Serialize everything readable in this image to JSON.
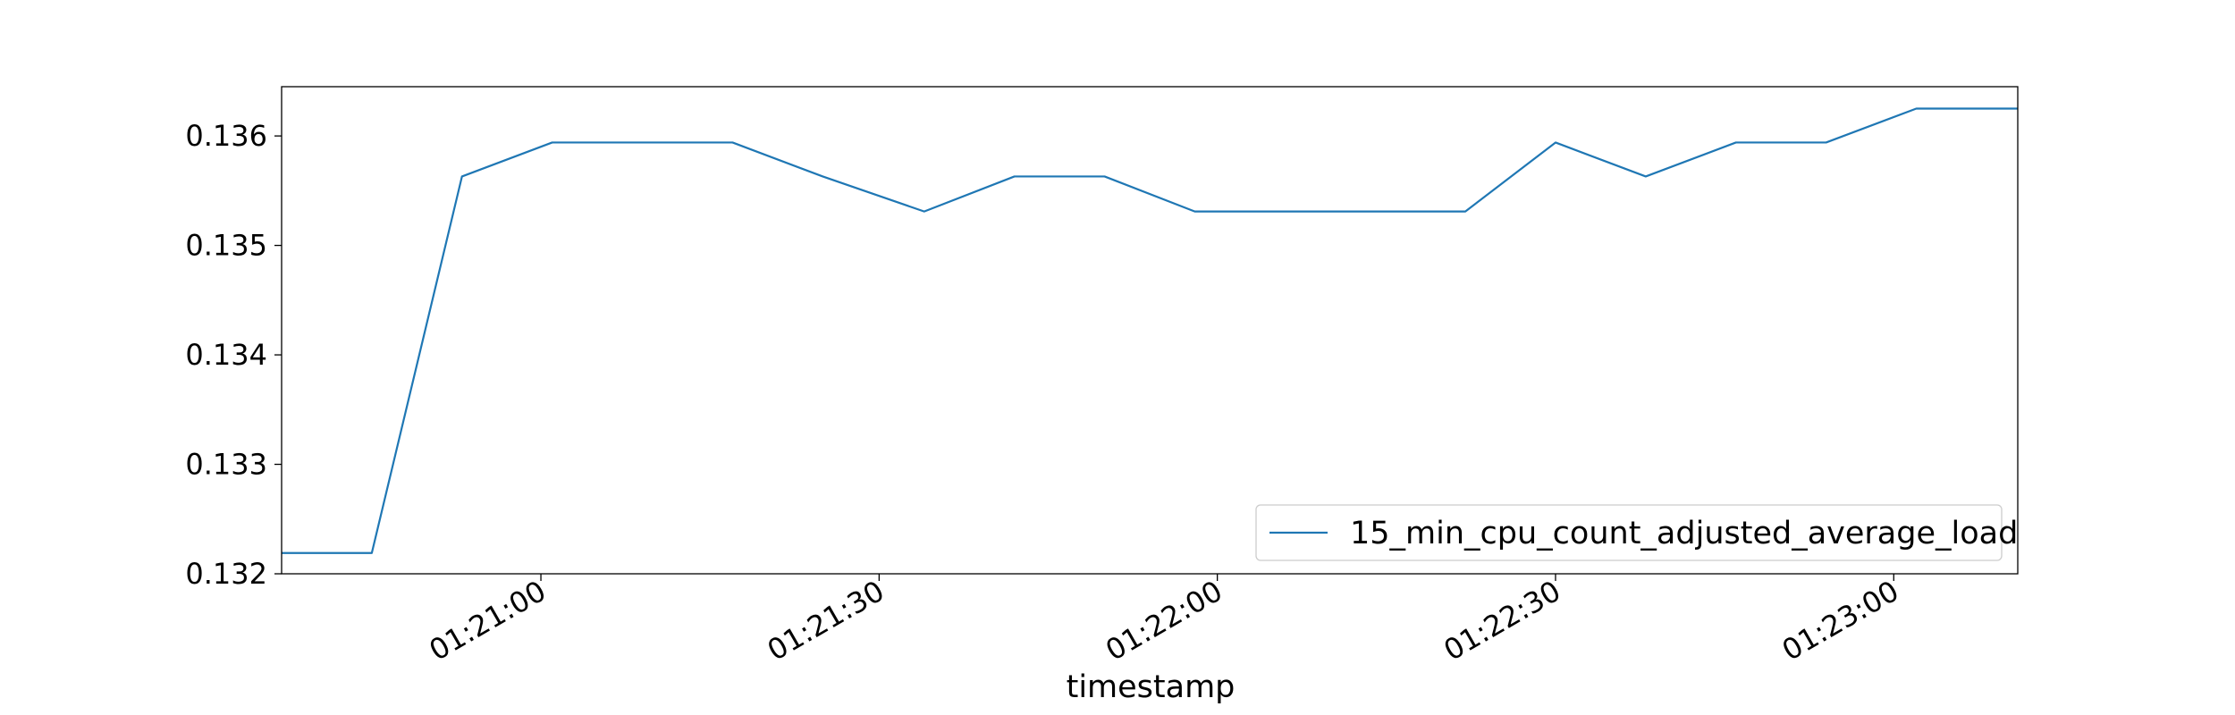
{
  "chart_data": {
    "type": "line",
    "title": "",
    "xlabel": "timestamp",
    "ylabel": "",
    "xlim": [
      "01:20:37",
      "01:23:11"
    ],
    "ylim": [
      0.132,
      0.13645
    ],
    "xticks": [
      {
        "time": "01:21:00",
        "label": "01:21:00"
      },
      {
        "time": "01:21:30",
        "label": "01:21:30"
      },
      {
        "time": "01:22:00",
        "label": "01:22:00"
      },
      {
        "time": "01:22:30",
        "label": "01:22:30"
      },
      {
        "time": "01:23:00",
        "label": "01:23:00"
      }
    ],
    "yticks": [
      {
        "value": 0.132,
        "label": "0.132"
      },
      {
        "value": 0.133,
        "label": "0.133"
      },
      {
        "value": 0.134,
        "label": "0.134"
      },
      {
        "value": 0.135,
        "label": "0.135"
      },
      {
        "value": 0.136,
        "label": "0.136"
      }
    ],
    "grid": false,
    "legend_position": "lower-right",
    "series": [
      {
        "name": "15_min_cpu_count_adjusted_average_load",
        "color": "#1f77b4",
        "points": [
          {
            "x": "01:20:37",
            "y": 0.13219
          },
          {
            "x": "01:20:45",
            "y": 0.13219
          },
          {
            "x": "01:20:53",
            "y": 0.13563
          },
          {
            "x": "01:21:01",
            "y": 0.13594
          },
          {
            "x": "01:21:09",
            "y": 0.13594
          },
          {
            "x": "01:21:17",
            "y": 0.13594
          },
          {
            "x": "01:21:25",
            "y": 0.13563
          },
          {
            "x": "01:21:34",
            "y": 0.13531
          },
          {
            "x": "01:21:42",
            "y": 0.13563
          },
          {
            "x": "01:21:50",
            "y": 0.13563
          },
          {
            "x": "01:21:58",
            "y": 0.13531
          },
          {
            "x": "01:22:06",
            "y": 0.13531
          },
          {
            "x": "01:22:14",
            "y": 0.13531
          },
          {
            "x": "01:22:22",
            "y": 0.13531
          },
          {
            "x": "01:22:30",
            "y": 0.13594
          },
          {
            "x": "01:22:38",
            "y": 0.13563
          },
          {
            "x": "01:22:46",
            "y": 0.13594
          },
          {
            "x": "01:22:54",
            "y": 0.13594
          },
          {
            "x": "01:23:02",
            "y": 0.13625
          },
          {
            "x": "01:23:11",
            "y": 0.13625
          }
        ]
      }
    ]
  }
}
